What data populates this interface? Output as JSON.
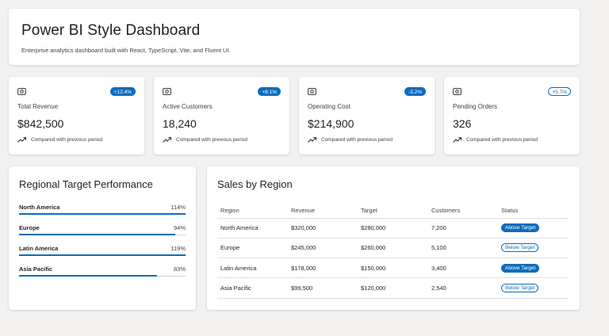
{
  "header": {
    "title": "Power BI Style Dashboard",
    "subtitle": "Enterprise analytics dashboard built with React, TypeScript, Vite, and Fluent UI."
  },
  "kpis": [
    {
      "icon": "money-icon",
      "badge": "+12.4%",
      "badge_style": "filled",
      "title": "Total Revenue",
      "value": "$842,500",
      "trend_icon": "trend-up-icon",
      "foot": "Compared with previous period"
    },
    {
      "icon": "money-icon",
      "badge": "+8.1%",
      "badge_style": "filled",
      "title": "Active Customers",
      "value": "18,240",
      "trend_icon": "trend-up-icon",
      "foot": "Compared with previous period"
    },
    {
      "icon": "money-icon",
      "badge": "-3.2%",
      "badge_style": "filled",
      "title": "Operating Cost",
      "value": "$214,900",
      "trend_icon": "trend-up-icon",
      "foot": "Compared with previous period"
    },
    {
      "icon": "money-icon",
      "badge": "+5.7%",
      "badge_style": "outline",
      "title": "Pending Orders",
      "value": "326",
      "trend_icon": "trend-up-icon",
      "foot": "Compared with previous period"
    }
  ],
  "regional": {
    "title": "Regional Target Performance",
    "items": [
      {
        "name": "North America",
        "pct_label": "114%",
        "fill": 1.0
      },
      {
        "name": "Europe",
        "pct_label": "94%",
        "fill": 0.94
      },
      {
        "name": "Latin America",
        "pct_label": "119%",
        "fill": 1.0
      },
      {
        "name": "Asia Pacific",
        "pct_label": "83%",
        "fill": 0.83
      }
    ]
  },
  "sales": {
    "title": "Sales by Region",
    "columns": [
      "Region",
      "Revenue",
      "Target",
      "Customers",
      "Status"
    ],
    "rows": [
      {
        "region": "North America",
        "revenue": "$320,000",
        "target": "$280,000",
        "customers": "7,200",
        "status": "Above Target",
        "status_style": "above"
      },
      {
        "region": "Europe",
        "revenue": "$245,000",
        "target": "$260,000",
        "customers": "5,100",
        "status": "Below Target",
        "status_style": "below"
      },
      {
        "region": "Latin America",
        "revenue": "$178,000",
        "target": "$150,000",
        "customers": "3,400",
        "status": "Above Target",
        "status_style": "above"
      },
      {
        "region": "Asia Pacific",
        "revenue": "$99,500",
        "target": "$120,000",
        "customers": "2,540",
        "status": "Below Target",
        "status_style": "below"
      }
    ]
  },
  "colors": {
    "accent": "#0f6cbd",
    "background": "#f3f2f1",
    "card": "#ffffff"
  }
}
